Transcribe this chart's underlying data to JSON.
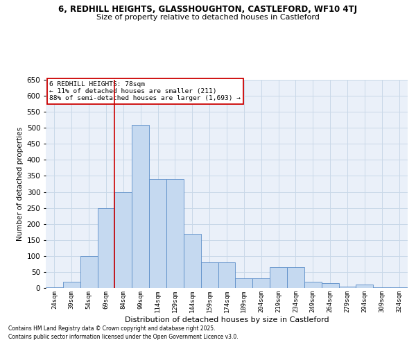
{
  "title_line1": "6, REDHILL HEIGHTS, GLASSHOUGHTON, CASTLEFORD, WF10 4TJ",
  "title_line2": "Size of property relative to detached houses in Castleford",
  "xlabel": "Distribution of detached houses by size in Castleford",
  "ylabel": "Number of detached properties",
  "categories": [
    "24sqm",
    "39sqm",
    "54sqm",
    "69sqm",
    "84sqm",
    "99sqm",
    "114sqm",
    "129sqm",
    "144sqm",
    "159sqm",
    "174sqm",
    "189sqm",
    "204sqm",
    "219sqm",
    "234sqm",
    "249sqm",
    "264sqm",
    "279sqm",
    "294sqm",
    "309sqm",
    "324sqm"
  ],
  "values": [
    2,
    20,
    100,
    250,
    300,
    510,
    340,
    340,
    170,
    80,
    80,
    30,
    30,
    65,
    65,
    20,
    15,
    5,
    10,
    2,
    2
  ],
  "bar_color": "#c5d9f0",
  "bar_edge_color": "#5b8dc8",
  "grid_color": "#c8d8e8",
  "bg_color": "#eaf0f9",
  "vline_color": "#cc0000",
  "vline_pos": 3.5,
  "annotation_text": "6 REDHILL HEIGHTS: 78sqm\n← 11% of detached houses are smaller (211)\n88% of semi-detached houses are larger (1,693) →",
  "annotation_box_color": "#cc0000",
  "footnote1": "Contains HM Land Registry data © Crown copyright and database right 2025.",
  "footnote2": "Contains public sector information licensed under the Open Government Licence v3.0.",
  "ylim_max": 650,
  "ytick_step": 50
}
